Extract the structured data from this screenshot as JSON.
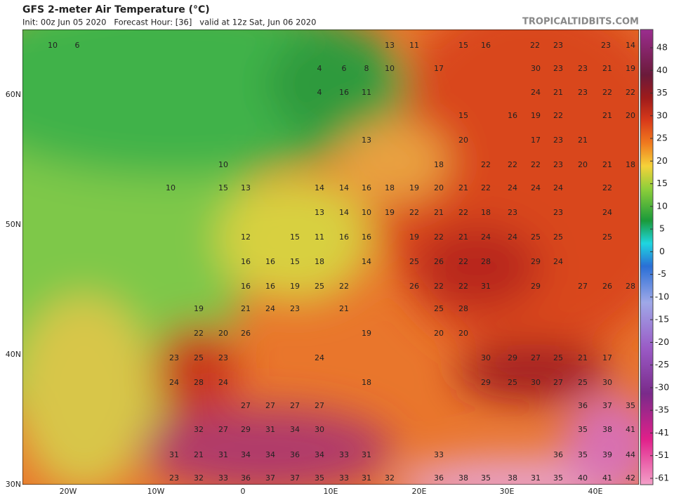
{
  "header": {
    "title": "GFS 2-meter Air Temperature (°C)",
    "subtitle": "Init: 00z Jun 05 2020   Forecast Hour: [36]   valid at 12z Sat, Jun 06 2020",
    "source": "TROPICALTIDBITS.COM"
  },
  "map": {
    "lat_labels": [
      "60N",
      "50N",
      "40N",
      "30N"
    ],
    "lon_labels": [
      "20W",
      "10W",
      "0",
      "10E",
      "20E",
      "30E",
      "40E"
    ],
    "temperature_labels": [
      "10",
      "6",
      "13",
      "11",
      "15",
      "16",
      "22",
      "23",
      "23",
      "14",
      "4",
      "6",
      "8",
      "10",
      "17",
      "30",
      "23",
      "23",
      "21",
      "19",
      "4",
      "16",
      "11",
      "24",
      "21",
      "23",
      "22",
      "22",
      "15",
      "16",
      "19",
      "22",
      "21",
      "20",
      "13",
      "20",
      "17",
      "23",
      "21",
      "10",
      "18",
      "22",
      "22",
      "22",
      "23",
      "20",
      "21",
      "18",
      "10",
      "15",
      "13",
      "14",
      "14",
      "16",
      "18",
      "19",
      "20",
      "21",
      "22",
      "24",
      "24",
      "24",
      "22",
      "13",
      "14",
      "10",
      "19",
      "22",
      "21",
      "22",
      "18",
      "23",
      "23",
      "24",
      "12",
      "15",
      "11",
      "16",
      "16",
      "19",
      "22",
      "21",
      "24",
      "24",
      "25",
      "25",
      "25",
      "16",
      "16",
      "15",
      "18",
      "14",
      "25",
      "26",
      "22",
      "28",
      "29",
      "24",
      "16",
      "16",
      "19",
      "25",
      "22",
      "26",
      "22",
      "22",
      "31",
      "29",
      "27",
      "26",
      "28",
      "19",
      "21",
      "24",
      "23",
      "21",
      "25",
      "28",
      "22",
      "20",
      "26",
      "19",
      "20",
      "20",
      "23",
      "25",
      "23",
      "24",
      "30",
      "29",
      "27",
      "25",
      "21",
      "17",
      "24",
      "28",
      "24",
      "18",
      "29",
      "25",
      "30",
      "27",
      "25",
      "30",
      "27",
      "27",
      "27",
      "27",
      "36",
      "37",
      "35",
      "32",
      "27",
      "29",
      "31",
      "34",
      "30",
      "35",
      "38",
      "41",
      "31",
      "21",
      "31",
      "34",
      "34",
      "36",
      "34",
      "33",
      "31",
      "33",
      "36",
      "35",
      "39",
      "44",
      "23",
      "32",
      "33",
      "36",
      "37",
      "37",
      "35",
      "33",
      "31",
      "32",
      "36",
      "38",
      "35",
      "38",
      "31",
      "35",
      "40",
      "41",
      "42"
    ]
  },
  "colorbar": {
    "ticks": [
      48,
      40,
      35,
      30,
      25,
      20,
      15,
      10,
      5,
      0,
      -5,
      -10,
      -15,
      -20,
      -25,
      -30,
      -35,
      -41,
      -51,
      -61
    ]
  }
}
